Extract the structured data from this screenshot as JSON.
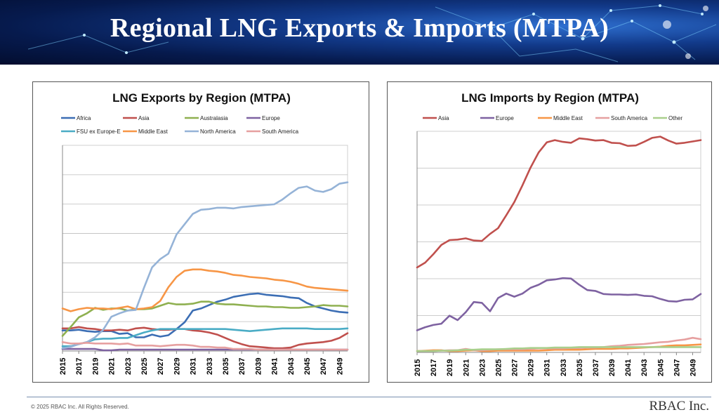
{
  "page": {
    "title": "Regional LNG Exports & Imports (MTPA)",
    "copyright": "© 2025 RBAC Inc. All Rights Reserved.",
    "brand": "RBAC Inc."
  },
  "chart_data": [
    {
      "type": "line",
      "title": "LNG Exports by Region (MTPA)",
      "xlabel": "",
      "ylabel": "",
      "ylim": [
        0,
        300
      ],
      "grid": true,
      "legend_position": "top",
      "x": [
        2015,
        2016,
        2017,
        2018,
        2019,
        2020,
        2021,
        2022,
        2023,
        2024,
        2025,
        2026,
        2027,
        2028,
        2029,
        2030,
        2031,
        2032,
        2033,
        2034,
        2035,
        2036,
        2037,
        2038,
        2039,
        2040,
        2041,
        2042,
        2043,
        2044,
        2045,
        2046,
        2047,
        2048,
        2049,
        2050
      ],
      "x_tick_labels": [
        "2015",
        "2017",
        "2019",
        "2021",
        "2023",
        "2025",
        "2027",
        "2029",
        "2031",
        "2033",
        "2035",
        "2037",
        "2039",
        "2041",
        "2043",
        "2045",
        "2047",
        "2049"
      ],
      "series": [
        {
          "name": "Africa",
          "color": "#3c6eb4",
          "values": [
            30,
            30,
            31,
            29,
            28,
            29,
            29,
            25,
            26,
            20,
            20,
            24,
            21,
            23,
            32,
            42,
            59,
            62,
            67,
            72,
            75,
            79,
            81,
            83,
            84,
            82,
            81,
            80,
            78,
            77,
            70,
            65,
            62,
            59,
            57,
            56
          ]
        },
        {
          "name": "Asia",
          "color": "#c0504d",
          "values": [
            33,
            33,
            35,
            33,
            32,
            30,
            30,
            31,
            30,
            33,
            34,
            32,
            31,
            31,
            32,
            32,
            30,
            29,
            27,
            24,
            19,
            14,
            10,
            7,
            6,
            5,
            4,
            4,
            5,
            9,
            11,
            12,
            13,
            15,
            19,
            26
          ]
        },
        {
          "name": "Australasia",
          "color": "#8fb050",
          "values": [
            22,
            35,
            49,
            55,
            63,
            60,
            62,
            62,
            59,
            61,
            61,
            62,
            66,
            70,
            68,
            68,
            69,
            72,
            72,
            69,
            68,
            68,
            67,
            66,
            65,
            65,
            64,
            64,
            63,
            63,
            64,
            65,
            67,
            66,
            66,
            65
          ]
        },
        {
          "name": "Europe",
          "color": "#7e62a1",
          "values": [
            3,
            3,
            3,
            3,
            3,
            1,
            1,
            2,
            2,
            2,
            2,
            2,
            2,
            2,
            2,
            2,
            2,
            2,
            2,
            2,
            2,
            2,
            2,
            2,
            2,
            2,
            2,
            2,
            2,
            2,
            2,
            2,
            2,
            2,
            2,
            2
          ]
        },
        {
          "name": "FSU ex Europe-E",
          "color": "#4aacc5",
          "values": [
            7,
            7,
            10,
            13,
            17,
            18,
            18,
            19,
            19,
            23,
            27,
            30,
            32,
            32,
            32,
            32,
            32,
            32,
            32,
            32,
            32,
            31,
            30,
            29,
            30,
            31,
            32,
            33,
            33,
            33,
            33,
            32,
            32,
            32,
            32,
            33
          ]
        },
        {
          "name": "Middle East",
          "color": "#f79646",
          "values": [
            62,
            58,
            61,
            63,
            62,
            62,
            61,
            63,
            65,
            61,
            62,
            64,
            73,
            93,
            108,
            117,
            119,
            119,
            117,
            116,
            114,
            111,
            110,
            108,
            107,
            106,
            104,
            103,
            101,
            98,
            94,
            92,
            91,
            90,
            89,
            88
          ]
        },
        {
          "name": "North America",
          "color": "#95b3d7",
          "values": [
            4,
            6,
            10,
            13,
            20,
            31,
            50,
            55,
            59,
            60,
            92,
            122,
            134,
            142,
            170,
            185,
            200,
            206,
            207,
            209,
            209,
            208,
            210,
            211,
            212,
            213,
            214,
            221,
            230,
            238,
            240,
            234,
            232,
            236,
            244,
            246
          ]
        },
        {
          "name": "South America",
          "color": "#e6a0a0",
          "values": [
            13,
            11,
            11,
            12,
            11,
            11,
            11,
            10,
            11,
            8,
            8,
            8,
            7,
            8,
            9,
            9,
            8,
            6,
            6,
            5,
            5,
            3,
            3,
            3,
            2,
            2,
            2,
            2,
            2,
            2,
            2,
            2,
            2,
            2,
            2,
            2
          ]
        }
      ]
    },
    {
      "type": "line",
      "title": "LNG Imports by Region (MTPA)",
      "xlabel": "",
      "ylabel": "",
      "ylim": [
        0,
        500
      ],
      "grid": true,
      "legend_position": "top",
      "x": [
        2015,
        2016,
        2017,
        2018,
        2019,
        2020,
        2021,
        2022,
        2023,
        2024,
        2025,
        2026,
        2027,
        2028,
        2029,
        2030,
        2031,
        2032,
        2033,
        2034,
        2035,
        2036,
        2037,
        2038,
        2039,
        2040,
        2041,
        2042,
        2043,
        2044,
        2045,
        2046,
        2047,
        2048,
        2049,
        2050
      ],
      "x_tick_labels": [
        "2015",
        "2017",
        "2019",
        "2021",
        "2023",
        "2025",
        "2027",
        "2029",
        "2031",
        "2033",
        "2035",
        "2037",
        "2039",
        "2041",
        "2043",
        "2045",
        "2047",
        "2049"
      ],
      "series": [
        {
          "name": "Asia",
          "color": "#c0504d",
          "values": [
            192,
            203,
            222,
            243,
            254,
            255,
            258,
            253,
            252,
            268,
            281,
            310,
            340,
            378,
            418,
            452,
            475,
            480,
            476,
            474,
            484,
            482,
            479,
            480,
            474,
            473,
            467,
            468,
            476,
            485,
            488,
            479,
            472,
            474,
            477,
            480
          ]
        },
        {
          "name": "Europe",
          "color": "#7e62a1",
          "values": [
            50,
            57,
            62,
            65,
            83,
            73,
            91,
            114,
            112,
            93,
            123,
            133,
            126,
            133,
            146,
            153,
            163,
            165,
            168,
            167,
            153,
            141,
            139,
            132,
            131,
            131,
            130,
            131,
            128,
            127,
            121,
            116,
            115,
            119,
            120,
            132
          ]
        },
        {
          "name": "Middle East",
          "color": "#f79646",
          "values": [
            3,
            4,
            5,
            5,
            3,
            3,
            4,
            5,
            3,
            3,
            4,
            4,
            4,
            4,
            4,
            4,
            5,
            6,
            6,
            6,
            6,
            7,
            8,
            8,
            8,
            9,
            9,
            10,
            11,
            12,
            13,
            15,
            16,
            16,
            17,
            18
          ]
        },
        {
          "name": "South America",
          "color": "#e6a0a0",
          "values": [
            3,
            3,
            3,
            4,
            5,
            5,
            8,
            5,
            5,
            6,
            7,
            7,
            7,
            7,
            8,
            9,
            9,
            9,
            9,
            10,
            10,
            11,
            11,
            12,
            14,
            15,
            17,
            18,
            19,
            21,
            23,
            24,
            27,
            29,
            33,
            30
          ]
        },
        {
          "name": "Other",
          "color": "#a9cf8c",
          "values": [
            3,
            3,
            3,
            4,
            4,
            5,
            6,
            6,
            7,
            7,
            7,
            8,
            9,
            9,
            10,
            10,
            10,
            11,
            11,
            11,
            12,
            12,
            12,
            12,
            12,
            12,
            12,
            12,
            12,
            12,
            12,
            12,
            12,
            12,
            12,
            12
          ]
        }
      ]
    }
  ]
}
